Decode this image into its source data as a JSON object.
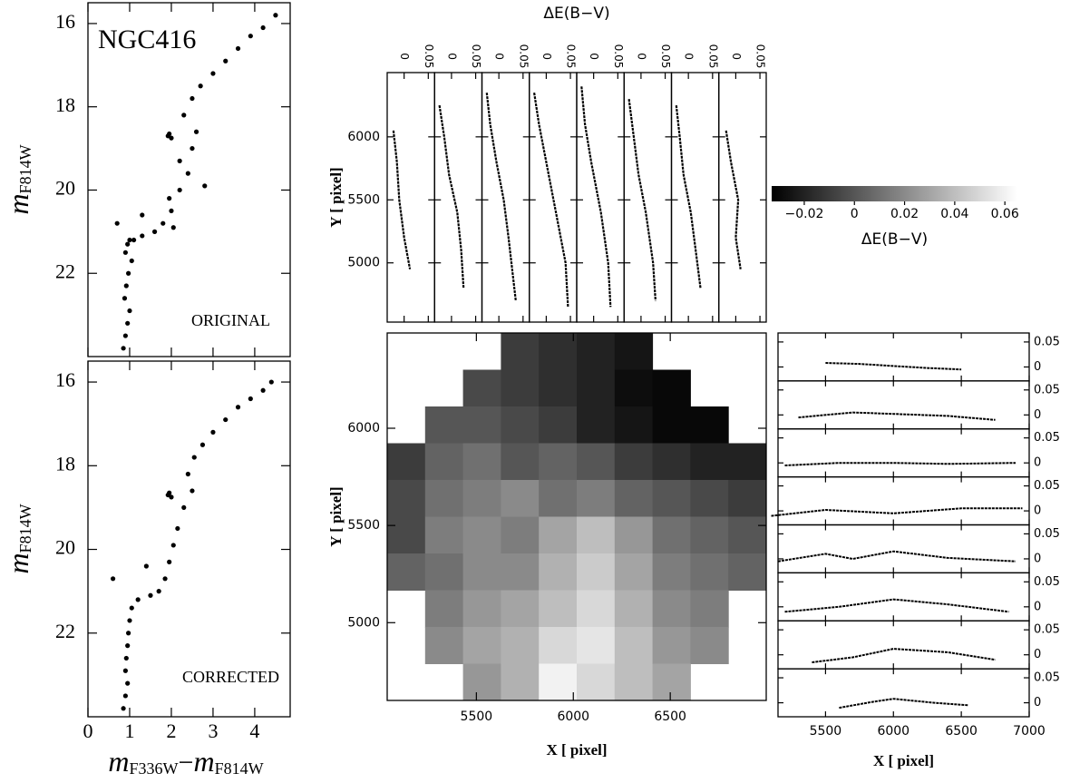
{
  "chart_data": [
    {
      "type": "scatter",
      "annotation": "NGC416",
      "label": "ORIGINAL",
      "color": "#000000",
      "ylabel": "m",
      "ylabel_sub": "F814W",
      "xlim": [
        0,
        4.85
      ],
      "ylim": [
        24,
        15.5
      ],
      "xticks": [
        0,
        1,
        2,
        3,
        4
      ],
      "yticks": [
        16,
        18,
        20,
        22
      ],
      "show_xtick_labels": false,
      "x": [
        0.85,
        0.9,
        0.95,
        1.0,
        0.88,
        0.92,
        0.97,
        1.05,
        0.9,
        0.95,
        1.0,
        1.1,
        1.3,
        1.6,
        1.8,
        2.0,
        1.95,
        2.05,
        2.2,
        2.4,
        2.2,
        2.5,
        2.6,
        1.92,
        1.95,
        2.0,
        2.3,
        2.5,
        2.7,
        3.0,
        3.3,
        3.6,
        3.9,
        4.2,
        4.5,
        0.7,
        1.3,
        2.8
      ],
      "y": [
        23.8,
        23.5,
        23.2,
        22.9,
        22.6,
        22.3,
        22.0,
        21.7,
        21.5,
        21.3,
        21.2,
        21.2,
        21.1,
        21.0,
        20.8,
        20.5,
        20.2,
        20.9,
        20.0,
        19.6,
        19.3,
        19.0,
        18.6,
        18.7,
        18.65,
        18.75,
        18.2,
        17.8,
        17.5,
        17.2,
        16.9,
        16.6,
        16.3,
        16.1,
        15.8,
        20.8,
        20.6,
        19.9
      ]
    },
    {
      "type": "scatter",
      "label": "CORRECTED",
      "color": "#000000",
      "ylabel": "m",
      "ylabel_sub": "F814W",
      "xlabel_parts": [
        "m",
        "F336W",
        "−",
        "m",
        "F814W"
      ],
      "xlim": [
        0,
        4.85
      ],
      "ylim": [
        24,
        15.5
      ],
      "xticks": [
        0,
        1,
        2,
        3,
        4
      ],
      "yticks": [
        16,
        18,
        20,
        22
      ],
      "show_xtick_labels": true,
      "x": [
        0.85,
        0.9,
        0.95,
        0.9,
        0.92,
        0.95,
        0.97,
        1.0,
        1.05,
        1.2,
        1.5,
        1.7,
        1.85,
        1.95,
        2.05,
        2.15,
        2.3,
        1.92,
        1.95,
        2.0,
        2.4,
        2.55,
        2.75,
        3.0,
        3.3,
        3.6,
        3.9,
        4.2,
        4.4,
        0.6,
        1.4,
        2.5
      ],
      "y": [
        23.8,
        23.5,
        23.2,
        22.9,
        22.6,
        22.3,
        22.0,
        21.7,
        21.4,
        21.2,
        21.1,
        21.0,
        20.7,
        20.3,
        19.9,
        19.5,
        19.0,
        18.7,
        18.65,
        18.75,
        18.2,
        17.8,
        17.5,
        17.2,
        16.9,
        16.6,
        16.4,
        16.2,
        16.0,
        20.7,
        20.4,
        18.6
      ]
    },
    {
      "type": "strips-vertical",
      "xlabel": "ΔE(B−V)",
      "ylabel": "Y [ pixel]",
      "color": "#000000",
      "xlim": [
        -0.035,
        0.063
      ],
      "ylim": [
        4530,
        6510
      ],
      "xticks": [
        0,
        0.05
      ],
      "yticks": [
        5000,
        5500,
        6000
      ],
      "series": [
        {
          "y": [
            6050,
            5800,
            5500,
            5200,
            4950
          ],
          "values": [
            -0.022,
            -0.015,
            -0.01,
            0.0,
            0.012
          ]
        },
        {
          "y": [
            6250,
            6000,
            5700,
            5400,
            5100,
            4800
          ],
          "values": [
            -0.025,
            -0.015,
            -0.005,
            0.012,
            0.02,
            0.025
          ]
        },
        {
          "y": [
            6350,
            6100,
            5800,
            5500,
            5200,
            4700
          ],
          "values": [
            -0.025,
            -0.018,
            -0.005,
            0.01,
            0.02,
            0.035
          ]
        },
        {
          "y": [
            6350,
            6100,
            5800,
            5400,
            5000,
            4650
          ],
          "values": [
            -0.025,
            -0.015,
            0.0,
            0.02,
            0.04,
            0.045
          ]
        },
        {
          "y": [
            6400,
            6100,
            5800,
            5400,
            5000,
            4650
          ],
          "values": [
            -0.025,
            -0.018,
            -0.005,
            0.015,
            0.03,
            0.035
          ]
        },
        {
          "y": [
            6300,
            6000,
            5700,
            5400,
            5000,
            4700
          ],
          "values": [
            -0.025,
            -0.015,
            -0.005,
            0.01,
            0.025,
            0.03
          ]
        },
        {
          "y": [
            6250,
            6000,
            5700,
            5400,
            5100,
            4800
          ],
          "values": [
            -0.025,
            -0.018,
            -0.01,
            0.005,
            0.015,
            0.025
          ]
        },
        {
          "y": [
            6050,
            5800,
            5500,
            5200,
            4950
          ],
          "values": [
            -0.02,
            -0.01,
            0.005,
            0.0,
            0.01
          ]
        }
      ]
    },
    {
      "type": "heatmap",
      "xlabel": "X [ pixel]",
      "ylabel": "Y [ pixel]",
      "xlim": [
        5040,
        6995
      ],
      "ylim": [
        4600,
        6490
      ],
      "xticks": [
        5500,
        6000,
        6500
      ],
      "yticks": [
        5000,
        5500,
        6000
      ],
      "values": [
        [
          null,
          null,
          null,
          -0.01,
          -0.015,
          -0.02,
          -0.025,
          null,
          null,
          null
        ],
        [
          null,
          null,
          -0.005,
          -0.01,
          -0.015,
          -0.02,
          -0.028,
          -0.03,
          null,
          null
        ],
        [
          null,
          0,
          0,
          -0.005,
          -0.01,
          -0.02,
          -0.025,
          -0.03,
          -0.03,
          null
        ],
        [
          -0.01,
          0.005,
          0.01,
          0,
          0.005,
          0,
          -0.01,
          -0.015,
          -0.02,
          -0.02
        ],
        [
          -0.005,
          0.01,
          0.015,
          0.02,
          0.01,
          0.015,
          0.005,
          0,
          -0.005,
          -0.01
        ],
        [
          -0.005,
          0.015,
          0.02,
          0.015,
          0.03,
          0.04,
          0.025,
          0.01,
          0.005,
          0
        ],
        [
          0.005,
          0.01,
          0.02,
          0.02,
          0.035,
          0.045,
          0.03,
          0.015,
          0.01,
          0.005
        ],
        [
          null,
          0.015,
          0.025,
          0.03,
          0.04,
          0.05,
          0.035,
          0.02,
          0.015,
          null
        ],
        [
          null,
          0.02,
          0.03,
          0.035,
          0.05,
          0.055,
          0.04,
          0.025,
          0.02,
          null
        ],
        [
          null,
          null,
          0.025,
          0.035,
          0.06,
          0.05,
          0.04,
          0.03,
          null,
          null
        ]
      ],
      "colorbar": {
        "clim": [
          -0.033,
          0.065
        ],
        "label": "ΔE(B−V)",
        "ticks": [
          {
            "value": -0.02,
            "label": "−0.02"
          },
          0,
          0.02,
          0.04,
          0.06
        ]
      }
    },
    {
      "type": "strips-horizontal",
      "xlabel": "X [ pixel]",
      "color": "#000000",
      "xlim": [
        5150,
        7000
      ],
      "ylim": [
        -0.028,
        0.068
      ],
      "xticks": [
        5500,
        6000,
        6500,
        7000
      ],
      "yticks": [
        0,
        0.05
      ],
      "series": [
        {
          "x": [
            5500,
            5750,
            6000,
            6250,
            6500
          ],
          "values": [
            0.008,
            0.006,
            0.002,
            -0.002,
            -0.005
          ]
        },
        {
          "x": [
            5300,
            5700,
            6000,
            6400,
            6750
          ],
          "values": [
            -0.005,
            0.005,
            0.002,
            -0.002,
            -0.01
          ]
        },
        {
          "x": [
            5200,
            5600,
            6000,
            6400,
            6900
          ],
          "values": [
            -0.005,
            0.0,
            0.0,
            -0.002,
            0.0
          ]
        },
        {
          "x": [
            5100,
            5500,
            6000,
            6500,
            6950
          ],
          "values": [
            -0.01,
            0.002,
            -0.005,
            0.005,
            0.005
          ]
        },
        {
          "x": [
            5150,
            5500,
            5700,
            6000,
            6400,
            6900
          ],
          "values": [
            -0.005,
            0.01,
            0.0,
            0.015,
            0.002,
            -0.005
          ]
        },
        {
          "x": [
            5200,
            5600,
            6000,
            6400,
            6850
          ],
          "values": [
            -0.01,
            0.0,
            0.015,
            0.005,
            -0.01
          ]
        },
        {
          "x": [
            5400,
            5700,
            6000,
            6400,
            6750
          ],
          "values": [
            -0.015,
            -0.005,
            0.012,
            0.005,
            -0.01
          ]
        },
        {
          "x": [
            5600,
            5850,
            6000,
            6300,
            6550
          ],
          "values": [
            -0.01,
            0.002,
            0.008,
            0.0,
            -0.005
          ]
        }
      ]
    }
  ]
}
